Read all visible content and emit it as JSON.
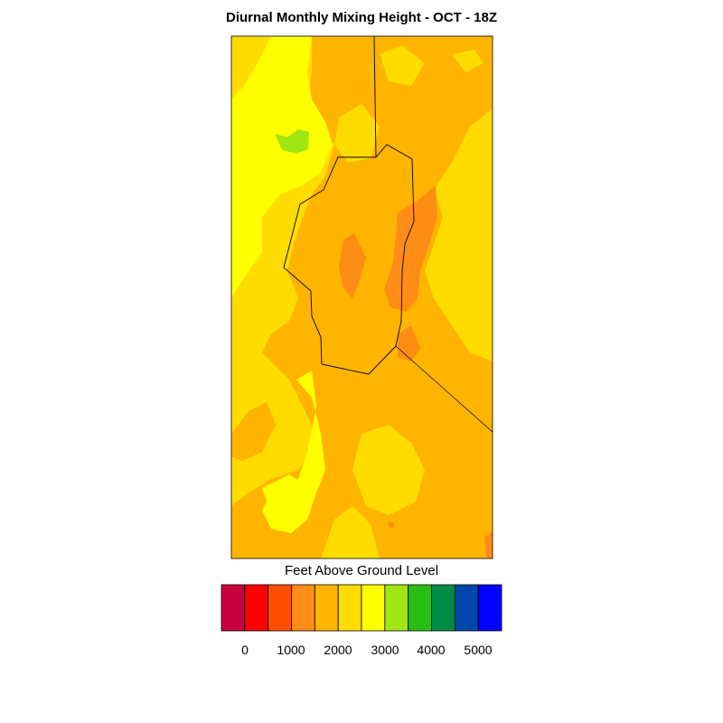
{
  "title": "Diurnal Monthly Mixing Height - OCT - 18Z",
  "legend": {
    "title": "Feet Above Ground Level",
    "colors": [
      "#c8003c",
      "#ff0000",
      "#ff5000",
      "#ff8c14",
      "#ffb400",
      "#ffdc00",
      "#ffff00",
      "#a0e614",
      "#28be14",
      "#008c46",
      "#0046aa",
      "#0000ff"
    ],
    "tick_labels": [
      "0",
      "1000",
      "2000",
      "3000",
      "4000",
      "5000"
    ]
  },
  "map": {
    "background_color": "#ffdc00",
    "colors": {
      "gold": "#ffdc00",
      "light_orange": "#ffb400",
      "orange": "#ff8c14",
      "yellow": "#ffff00",
      "green": "#a0e614"
    }
  }
}
